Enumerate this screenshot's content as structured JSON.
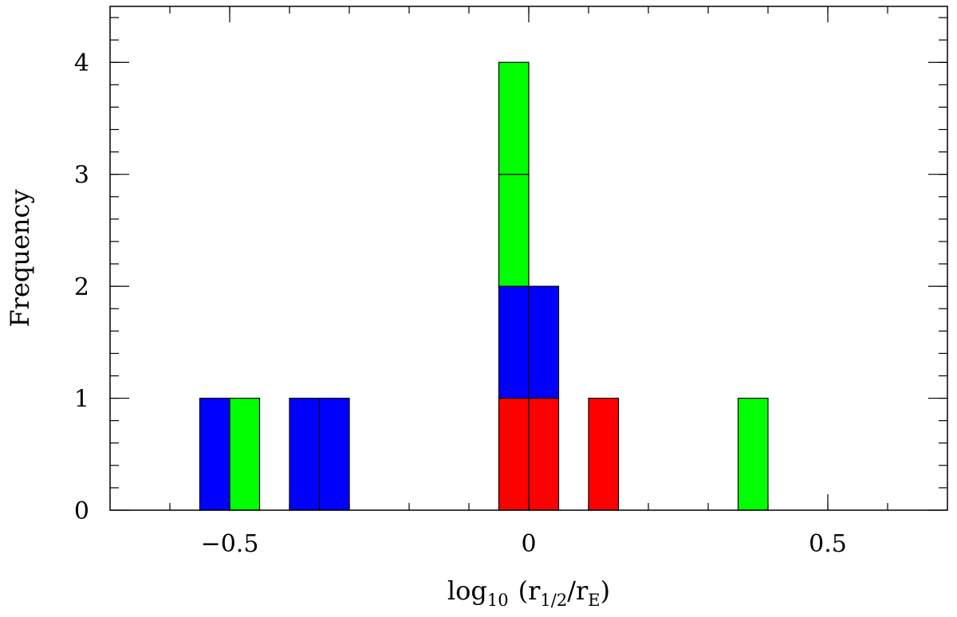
{
  "chart_data": {
    "type": "bar",
    "stacked": true,
    "xlabel": {
      "base": "log",
      "base_sub": "10",
      "open": "(r",
      "num_sub": "1/2",
      "slash": "/r",
      "den_sub": "E",
      "close": ")"
    },
    "ylabel": "Frequency",
    "xlim": [
      -0.7,
      0.7
    ],
    "ylim": [
      0,
      4.5
    ],
    "bin_width": 0.05,
    "x_ticks": [
      -0.5,
      0,
      0.5
    ],
    "x_tick_labels": [
      "−0.5",
      "0",
      "0.5"
    ],
    "y_ticks": [
      0,
      1,
      2,
      3,
      4
    ],
    "y_tick_labels": [
      "0",
      "1",
      "2",
      "3",
      "4"
    ],
    "x_minor_step": 0.1,
    "y_minor_step": 0.2,
    "grid": false,
    "legend": "none",
    "colors": {
      "red": "#ff0000",
      "blue": "#0000ff",
      "green": "#00ff00"
    },
    "bars": [
      {
        "x0": -0.55,
        "segments": [
          {
            "color": "blue",
            "count": 1
          }
        ]
      },
      {
        "x0": -0.5,
        "segments": [
          {
            "color": "green",
            "count": 1
          }
        ]
      },
      {
        "x0": -0.4,
        "segments": [
          {
            "color": "blue",
            "count": 1
          }
        ]
      },
      {
        "x0": -0.35,
        "segments": [
          {
            "color": "blue",
            "count": 1
          }
        ]
      },
      {
        "x0": -0.05,
        "segments": [
          {
            "color": "red",
            "count": 1
          },
          {
            "color": "blue",
            "count": 1
          },
          {
            "color": "green",
            "count": 1
          },
          {
            "color": "green",
            "count": 1
          }
        ]
      },
      {
        "x0": 0.0,
        "segments": [
          {
            "color": "red",
            "count": 1
          },
          {
            "color": "blue",
            "count": 1
          }
        ]
      },
      {
        "x0": 0.1,
        "segments": [
          {
            "color": "red",
            "count": 1
          }
        ]
      },
      {
        "x0": 0.35,
        "segments": [
          {
            "color": "green",
            "count": 1
          }
        ]
      }
    ]
  }
}
